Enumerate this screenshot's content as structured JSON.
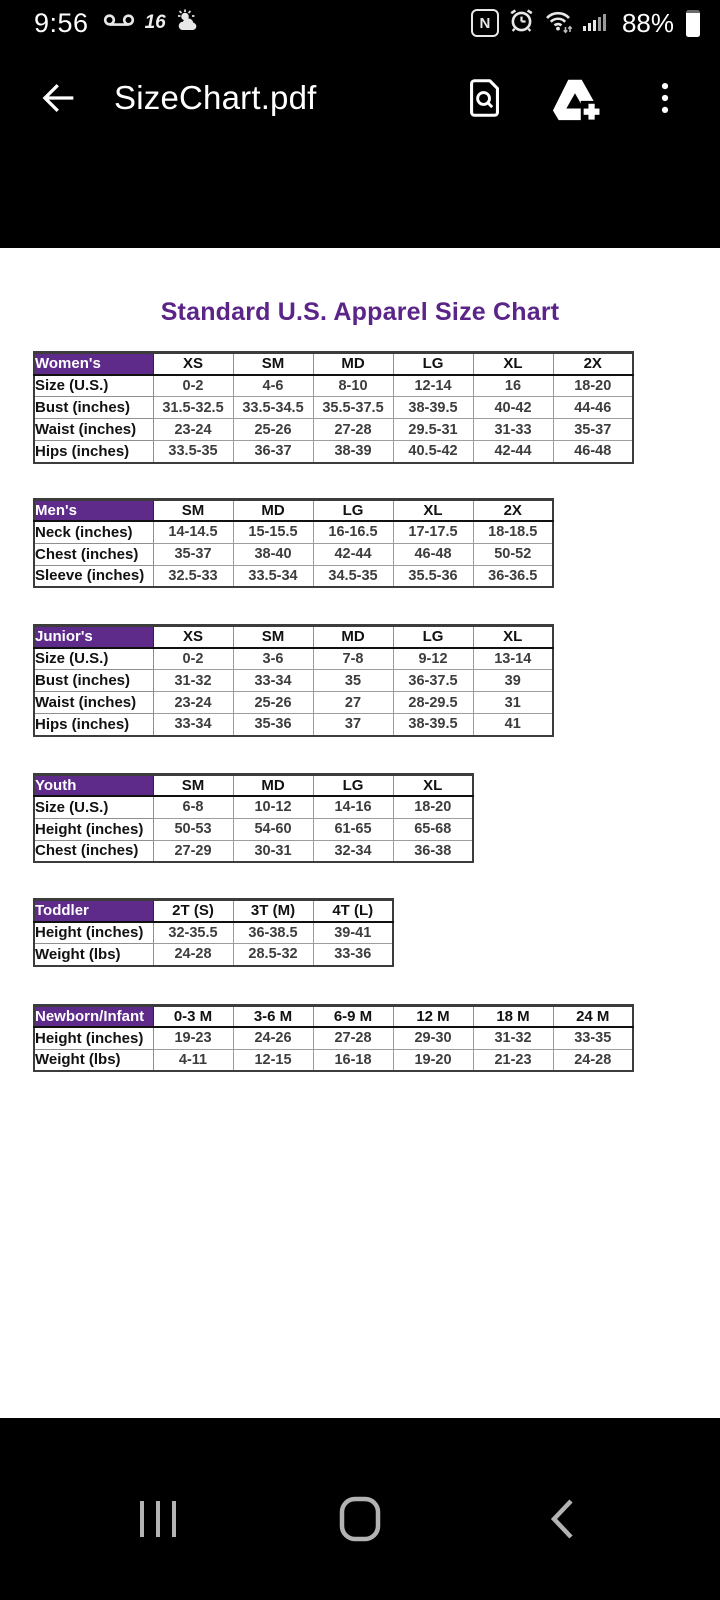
{
  "status_bar": {
    "time": "9:56",
    "battery_percent": "88%",
    "left_icons": [
      "voicemail-icon",
      "news-16-icon",
      "weather-icon"
    ],
    "news_badge": "16",
    "right_icons": [
      "nfc-icon",
      "alarm-icon",
      "wifi-icon",
      "signal-icon",
      "battery-icon"
    ],
    "nfc_letter": "N"
  },
  "app_bar": {
    "title": "SizeChart.pdf",
    "actions": [
      "back",
      "find-in-document",
      "add-to-drive",
      "more-options"
    ]
  },
  "document": {
    "page_title": "Standard U.S. Apparel Size Chart",
    "accent_color": "#5B2488",
    "header_bg_color": "#5E2B8A",
    "tables": [
      {
        "name": "Women's",
        "columns": [
          "XS",
          "SM",
          "MD",
          "LG",
          "XL",
          "2X"
        ],
        "rows": [
          {
            "label": "Size (U.S.)",
            "values": [
              "0-2",
              "4-6",
              "8-10",
              "12-14",
              "16",
              "18-20"
            ]
          },
          {
            "label": "Bust (inches)",
            "values": [
              "31.5-32.5",
              "33.5-34.5",
              "35.5-37.5",
              "38-39.5",
              "40-42",
              "44-46"
            ]
          },
          {
            "label": "Waist (inches)",
            "values": [
              "23-24",
              "25-26",
              "27-28",
              "29.5-31",
              "31-33",
              "35-37"
            ]
          },
          {
            "label": "Hips (inches)",
            "values": [
              "33.5-35",
              "36-37",
              "38-39",
              "40.5-42",
              "42-44",
              "46-48"
            ]
          }
        ]
      },
      {
        "name": "Men's",
        "columns": [
          "SM",
          "MD",
          "LG",
          "XL",
          "2X"
        ],
        "rows": [
          {
            "label": "Neck (inches)",
            "values": [
              "14-14.5",
              "15-15.5",
              "16-16.5",
              "17-17.5",
              "18-18.5"
            ]
          },
          {
            "label": "Chest (inches)",
            "values": [
              "35-37",
              "38-40",
              "42-44",
              "46-48",
              "50-52"
            ]
          },
          {
            "label": "Sleeve (inches)",
            "values": [
              "32.5-33",
              "33.5-34",
              "34.5-35",
              "35.5-36",
              "36-36.5"
            ]
          }
        ]
      },
      {
        "name": "Junior's",
        "columns": [
          "XS",
          "SM",
          "MD",
          "LG",
          "XL"
        ],
        "rows": [
          {
            "label": "Size (U.S.)",
            "values": [
              "0-2",
              "3-6",
              "7-8",
              "9-12",
              "13-14"
            ]
          },
          {
            "label": "Bust (inches)",
            "values": [
              "31-32",
              "33-34",
              "35",
              "36-37.5",
              "39"
            ]
          },
          {
            "label": "Waist (inches)",
            "values": [
              "23-24",
              "25-26",
              "27",
              "28-29.5",
              "31"
            ]
          },
          {
            "label": "Hips (inches)",
            "values": [
              "33-34",
              "35-36",
              "37",
              "38-39.5",
              "41"
            ]
          }
        ]
      },
      {
        "name": "Youth",
        "columns": [
          "SM",
          "MD",
          "LG",
          "XL"
        ],
        "rows": [
          {
            "label": "Size (U.S.)",
            "values": [
              "6-8",
              "10-12",
              "14-16",
              "18-20"
            ]
          },
          {
            "label": "Height (inches)",
            "values": [
              "50-53",
              "54-60",
              "61-65",
              "65-68"
            ]
          },
          {
            "label": "Chest (inches)",
            "values": [
              "27-29",
              "30-31",
              "32-34",
              "36-38"
            ]
          }
        ]
      },
      {
        "name": "Toddler",
        "columns": [
          "2T (S)",
          "3T (M)",
          "4T (L)"
        ],
        "rows": [
          {
            "label": "Height (inches)",
            "values": [
              "32-35.5",
              "36-38.5",
              "39-41"
            ]
          },
          {
            "label": "Weight (lbs)",
            "values": [
              "24-28",
              "28.5-32",
              "33-36"
            ]
          }
        ]
      },
      {
        "name": "Newborn/Infant",
        "columns": [
          "0-3 M",
          "3-6 M",
          "6-9 M",
          "12 M",
          "18 M",
          "24 M"
        ],
        "rows": [
          {
            "label": "Height (inches)",
            "values": [
              "19-23",
              "24-26",
              "27-28",
              "29-30",
              "31-32",
              "33-35"
            ]
          },
          {
            "label": "Weight (lbs)",
            "values": [
              "4-11",
              "12-15",
              "16-18",
              "19-20",
              "21-23",
              "24-28"
            ]
          }
        ]
      }
    ]
  },
  "nav_bar": {
    "items": [
      "recents",
      "home",
      "back"
    ]
  }
}
